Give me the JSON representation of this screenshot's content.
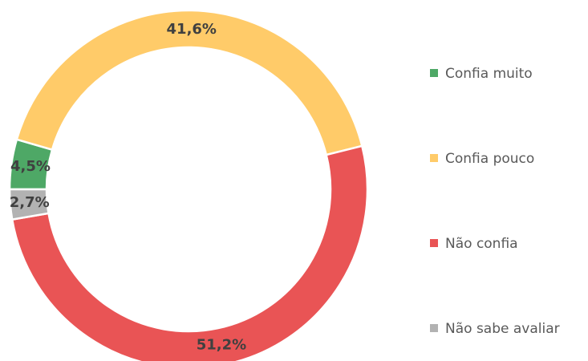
{
  "chart_data": {
    "type": "donut",
    "categories": [
      "Confia muito",
      "Confia pouco",
      "Não confia",
      "Não sabe avaliar"
    ],
    "values": [
      4.5,
      41.6,
      51.2,
      2.7
    ],
    "value_labels": [
      "4,5%",
      "41,6%",
      "51,2%",
      "2,7%"
    ],
    "colors": [
      "#4ea866",
      "#ffcb69",
      "#e95455",
      "#b2b2b2"
    ],
    "legend": "right"
  }
}
